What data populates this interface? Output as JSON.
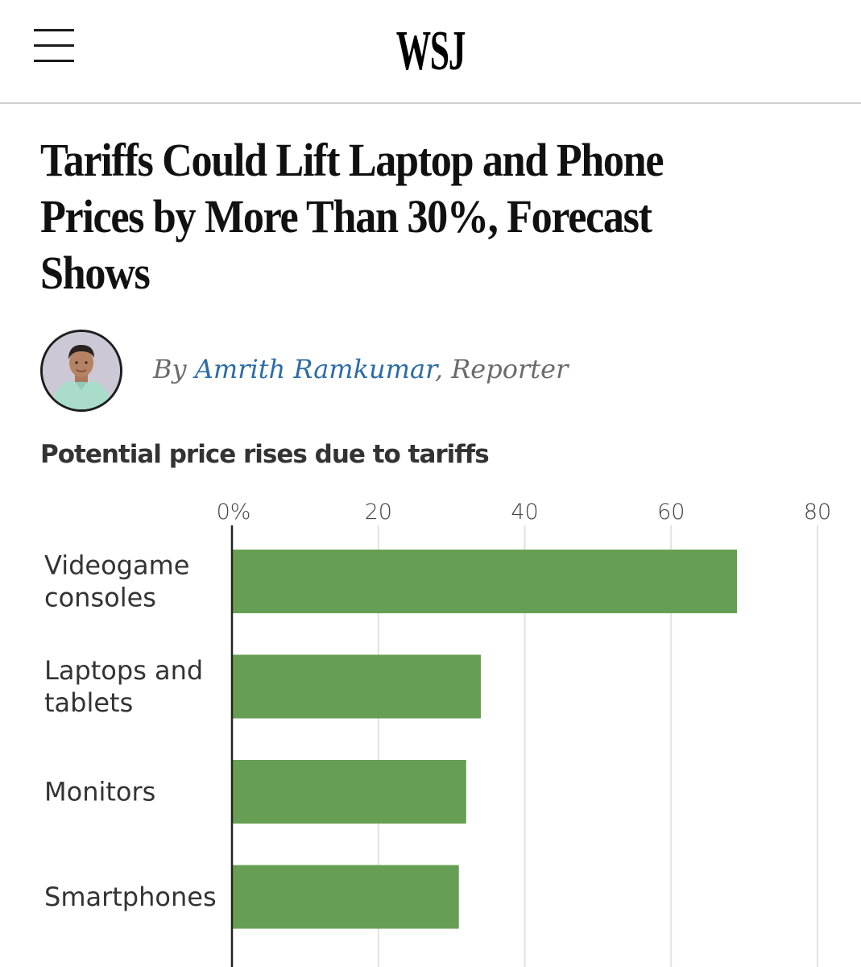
{
  "header": {
    "logo": "WSJ",
    "menu_icon": "hamburger-menu-icon"
  },
  "article": {
    "headline": "Tariffs Could Lift Laptop and Phone Prices by More Than 30%, Forecast Shows",
    "byline": {
      "prefix": "By ",
      "author": "Amrith Ramkumar",
      "suffix": ", Reporter",
      "avatar_icon": "author-photo"
    }
  },
  "colors": {
    "bar": "#669f53",
    "author_link": "#2c6ca6",
    "gridline": "#e2e2e2",
    "axis": "#222222"
  },
  "chart_data": {
    "type": "bar",
    "orientation": "horizontal",
    "title": "Potential price rises due to tariffs",
    "xlabel": "",
    "ylabel": "",
    "categories": [
      [
        "Videogame",
        "consoles"
      ],
      [
        "Laptops and",
        "tablets"
      ],
      [
        "Monitors"
      ],
      [
        "Smartphones"
      ]
    ],
    "category_names": [
      "Videogame consoles",
      "Laptops and tablets",
      "Monitors",
      "Smartphones"
    ],
    "values": [
      69,
      34,
      32,
      31
    ],
    "unit": "%",
    "xlim": [
      0,
      80
    ],
    "xticks": [
      0,
      20,
      40,
      60,
      80
    ],
    "xtick_labels": [
      "0%",
      "20",
      "40",
      "60",
      "80"
    ],
    "tick_position": "top",
    "grid": true,
    "legend": "none"
  }
}
